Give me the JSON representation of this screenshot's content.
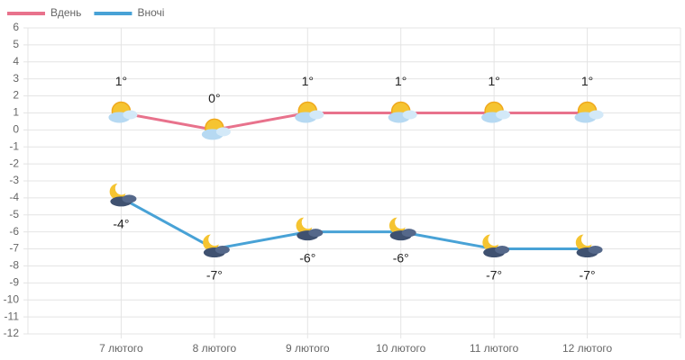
{
  "chart_data": {
    "type": "line",
    "categories": [
      "7 лютого",
      "8 лютого",
      "9 лютого",
      "10 лютого",
      "11 лютого",
      "12 лютого"
    ],
    "series": [
      {
        "name": "Вдень",
        "color": "#e8728c",
        "values": [
          1,
          0,
          1,
          1,
          1,
          1
        ],
        "value_labels": [
          "1°",
          "0°",
          "1°",
          "1°",
          "1°",
          "1°"
        ]
      },
      {
        "name": "Вночі",
        "color": "#48a2d6",
        "values": [
          -4,
          -7,
          -6,
          -6,
          -7,
          -7
        ],
        "value_labels": [
          "-4°",
          "-7°",
          "-6°",
          "-6°",
          "-7°",
          "-7°"
        ]
      }
    ],
    "ylim": [
      -12,
      6
    ],
    "yticks": [
      -12,
      -11,
      -10,
      -9,
      -8,
      -7,
      -6,
      -5,
      -4,
      -3,
      -2,
      -1,
      0,
      1,
      2,
      3,
      4,
      5,
      6
    ],
    "grid": true,
    "legend": "top-left"
  }
}
